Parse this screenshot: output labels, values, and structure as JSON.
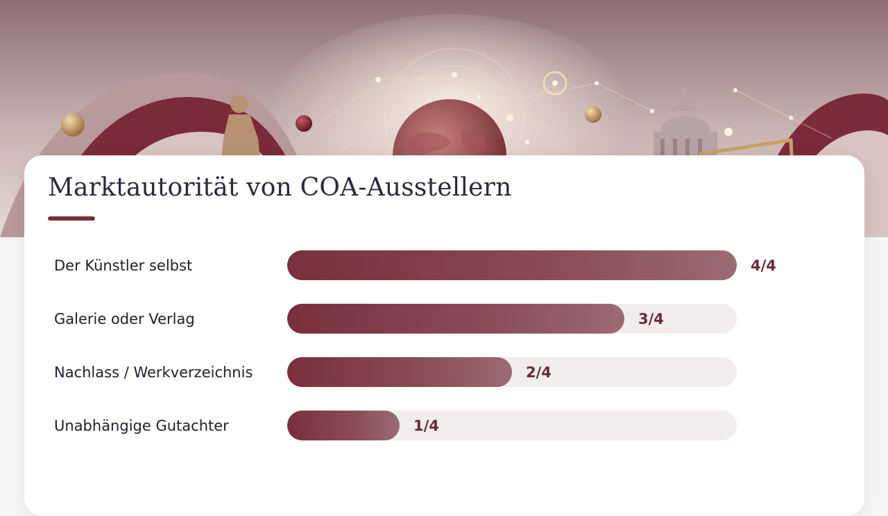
{
  "colors": {
    "accent": "#7b2f3b",
    "bar_start": "#7a2f3c",
    "bar_end": "#9b6b74",
    "track": "#f1eded",
    "value_text": "#6a2a36",
    "text": "#1f1e2b"
  },
  "chart_data": {
    "type": "bar",
    "orientation": "horizontal",
    "title": "Marktautorität von COA-Ausstellern",
    "categories": [
      "Der Künstler selbst",
      "Galerie oder Verlag",
      "Nachlass / Werkverzeichnis",
      "Unabhängige Gutachter"
    ],
    "values": [
      4,
      3,
      2,
      1
    ],
    "value_labels": [
      "4/4",
      "3/4",
      "2/4",
      "1/4"
    ],
    "xlim": [
      0,
      4
    ],
    "xlabel": "",
    "ylabel": "",
    "grid": false
  }
}
